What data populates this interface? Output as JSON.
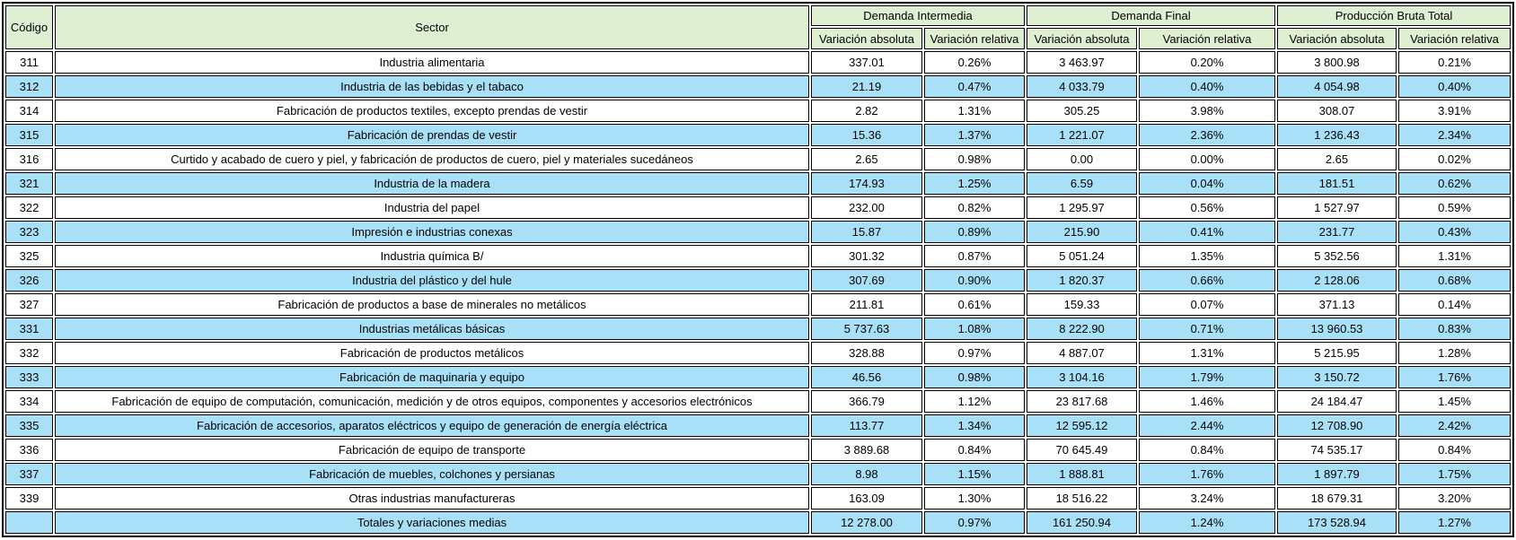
{
  "colors": {
    "header_bg": "#dff0d2",
    "row_bg": "#ffffff",
    "row_alt_bg": "#a8e0f8",
    "border": "#000000",
    "text": "#000000"
  },
  "chart_data": {
    "type": "table",
    "header": {
      "codigo": "Código",
      "sector": "Sector",
      "groups": [
        {
          "label": "Demanda Intermedia",
          "subcolumns": [
            "Variación absoluta",
            "Variación relativa"
          ]
        },
        {
          "label": "Demanda Final",
          "subcolumns": [
            "Variación absoluta",
            "Variación relativa"
          ]
        },
        {
          "label": "Producción Bruta Total",
          "subcolumns": [
            "Variación absoluta",
            "Variación relativa"
          ]
        }
      ]
    },
    "rows": [
      {
        "codigo": "311",
        "sector": "Industria alimentaria",
        "values": [
          "337.01",
          "0.26%",
          "3 463.97",
          "0.20%",
          "3 800.98",
          "0.21%"
        ]
      },
      {
        "codigo": "312",
        "sector": "Industria de las bebidas y el tabaco",
        "values": [
          "21.19",
          "0.47%",
          "4 033.79",
          "0.40%",
          "4 054.98",
          "0.40%"
        ]
      },
      {
        "codigo": "314",
        "sector": "Fabricación de productos textiles, excepto prendas de vestir",
        "values": [
          "2.82",
          "1.31%",
          "305.25",
          "3.98%",
          "308.07",
          "3.91%"
        ]
      },
      {
        "codigo": "315",
        "sector": "Fabricación de prendas de vestir",
        "values": [
          "15.36",
          "1.37%",
          "1 221.07",
          "2.36%",
          "1 236.43",
          "2.34%"
        ]
      },
      {
        "codigo": "316",
        "sector": "Curtido y acabado de cuero y piel, y fabricación de productos de cuero, piel y materiales sucedáneos",
        "values": [
          "2.65",
          "0.98%",
          "0.00",
          "0.00%",
          "2.65",
          "0.02%"
        ]
      },
      {
        "codigo": "321",
        "sector": "Industria de la madera",
        "values": [
          "174.93",
          "1.25%",
          "6.59",
          "0.04%",
          "181.51",
          "0.62%"
        ]
      },
      {
        "codigo": "322",
        "sector": "Industria del papel",
        "values": [
          "232.00",
          "0.82%",
          "1 295.97",
          "0.56%",
          "1 527.97",
          "0.59%"
        ]
      },
      {
        "codigo": "323",
        "sector": "Impresión e industrias conexas",
        "values": [
          "15.87",
          "0.89%",
          "215.90",
          "0.41%",
          "231.77",
          "0.43%"
        ]
      },
      {
        "codigo": "325",
        "sector": "Industria química B/",
        "values": [
          "301.32",
          "0.87%",
          "5 051.24",
          "1.35%",
          "5 352.56",
          "1.31%"
        ]
      },
      {
        "codigo": "326",
        "sector": "Industria del plástico y del hule",
        "values": [
          "307.69",
          "0.90%",
          "1 820.37",
          "0.66%",
          "2 128.06",
          "0.68%"
        ]
      },
      {
        "codigo": "327",
        "sector": "Fabricación de productos a base de minerales no metálicos",
        "values": [
          "211.81",
          "0.61%",
          "159.33",
          "0.07%",
          "371.13",
          "0.14%"
        ]
      },
      {
        "codigo": "331",
        "sector": "Industrias metálicas básicas",
        "values": [
          "5 737.63",
          "1.08%",
          "8 222.90",
          "0.71%",
          "13 960.53",
          "0.83%"
        ]
      },
      {
        "codigo": "332",
        "sector": "Fabricación de productos metálicos",
        "values": [
          "328.88",
          "0.97%",
          "4 887.07",
          "1.31%",
          "5 215.95",
          "1.28%"
        ]
      },
      {
        "codigo": "333",
        "sector": "Fabricación de maquinaria y equipo",
        "values": [
          "46.56",
          "0.98%",
          "3 104.16",
          "1.79%",
          "3 150.72",
          "1.76%"
        ]
      },
      {
        "codigo": "334",
        "sector": "Fabricación de equipo de computación, comunicación, medición y de otros equipos, componentes y accesorios electrónicos",
        "values": [
          "366.79",
          "1.12%",
          "23 817.68",
          "1.46%",
          "24 184.47",
          "1.45%"
        ]
      },
      {
        "codigo": "335",
        "sector": "Fabricación de accesorios, aparatos eléctricos y equipo de generación de energía eléctrica",
        "values": [
          "113.77",
          "1.34%",
          "12 595.12",
          "2.44%",
          "12 708.90",
          "2.42%"
        ]
      },
      {
        "codigo": "336",
        "sector": "Fabricación de equipo de transporte",
        "values": [
          "3 889.68",
          "0.84%",
          "70 645.49",
          "0.84%",
          "74 535.17",
          "0.84%"
        ]
      },
      {
        "codigo": "337",
        "sector": "Fabricación de muebles, colchones y persianas",
        "values": [
          "8.98",
          "1.15%",
          "1 888.81",
          "1.76%",
          "1 897.79",
          "1.75%"
        ]
      },
      {
        "codigo": "339",
        "sector": "Otras industrias manufactureras",
        "values": [
          "163.09",
          "1.30%",
          "18 516.22",
          "3.24%",
          "18 679.31",
          "3.20%"
        ]
      },
      {
        "codigo": "",
        "sector": "Totales y variaciones medias",
        "values": [
          "12 278.00",
          "0.97%",
          "161 250.94",
          "1.24%",
          "173 528.94",
          "1.27%"
        ]
      }
    ]
  }
}
